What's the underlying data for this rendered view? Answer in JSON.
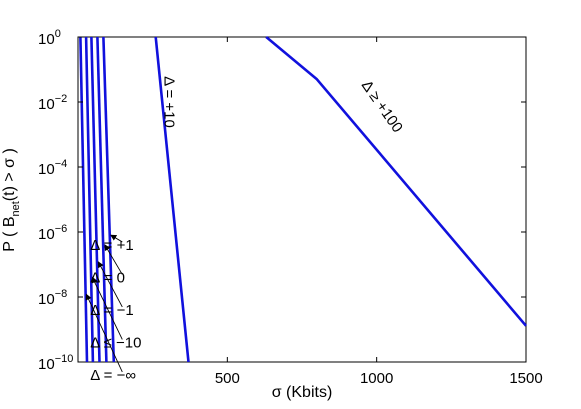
{
  "chart_data": {
    "type": "line",
    "xlabel": "σ (Kbits)",
    "ylabel": {
      "prefix": "P ( B",
      "subscript": "net",
      "suffix": "(t) > σ )"
    },
    "xlim": [
      0,
      1500
    ],
    "ylim": [
      1e-10,
      1
    ],
    "yscale": "log",
    "grid": false,
    "xticks": [
      {
        "value": 500,
        "label": "500"
      },
      {
        "value": 1000,
        "label": "1000"
      },
      {
        "value": 1500,
        "label": "1500"
      }
    ],
    "yticks": [
      {
        "value": 1,
        "base": "10",
        "exp": "0"
      },
      {
        "value": 0.01,
        "base": "10",
        "exp": "−2"
      },
      {
        "value": 0.0001,
        "base": "10",
        "exp": "−4"
      },
      {
        "value": 1e-06,
        "base": "10",
        "exp": "−6"
      },
      {
        "value": 1e-08,
        "base": "10",
        "exp": "−8"
      },
      {
        "value": 1e-10,
        "base": "10",
        "exp": "−10"
      }
    ],
    "line_color": "#1111dd",
    "series": [
      {
        "x": [
          8,
          30
        ],
        "y": [
          1,
          1e-10
        ]
      },
      {
        "x": [
          27,
          50
        ],
        "y": [
          1,
          1e-10
        ]
      },
      {
        "x": [
          45,
          72
        ],
        "y": [
          1,
          1e-10
        ]
      },
      {
        "x": [
          65,
          95
        ],
        "y": [
          1,
          1e-10
        ]
      },
      {
        "x": [
          85,
          120
        ],
        "y": [
          1,
          1e-10
        ]
      },
      {
        "x": [
          260,
          370
        ],
        "y": [
          1,
          1e-10
        ]
      },
      {
        "x": [
          630,
          800,
          1500
        ],
        "y": [
          1,
          0.05,
          1.3e-09
        ]
      }
    ],
    "curve_labels": [
      {
        "text": "Δ = +10",
        "x": 290,
        "y": 0.01,
        "rotate": 90
      },
      {
        "text": "Δ ≥ +100",
        "x": 1005,
        "y": 0.006,
        "rotate": 55
      }
    ],
    "legend": [
      {
        "text": "Δ = +1",
        "label_x": 155,
        "label_y": 4e-07,
        "arrow_x": 110,
        "arrow_y": 8e-07
      },
      {
        "text": "Δ = 0",
        "label_x": 155,
        "label_y": 4e-08,
        "arrow_x": 90,
        "arrow_y": 4e-07
      },
      {
        "text": "Δ = −1",
        "label_x": 155,
        "label_y": 4e-09,
        "arrow_x": 68,
        "arrow_y": 1.2e-07
      },
      {
        "text": "Δ ≤ −10",
        "label_x": 155,
        "label_y": 4e-10,
        "arrow_x": 48,
        "arrow_y": 4e-08
      },
      {
        "text": "Δ = −∞",
        "label_x": 155,
        "label_y": 4e-11,
        "arrow_x": 28,
        "arrow_y": 1.2e-08
      }
    ]
  }
}
